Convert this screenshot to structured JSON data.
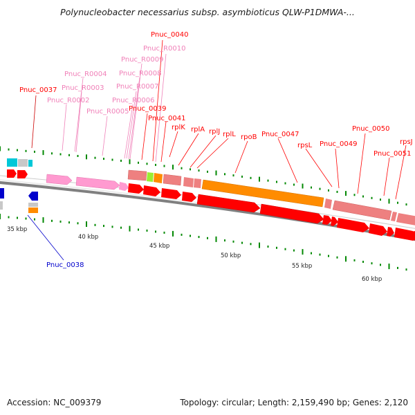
{
  "title": "Polynucleobacter necessarius subsp. asymbioticus QLW-P1DMWA-...",
  "footer": {
    "accession": "Accession: NC_009379",
    "summary": "Topology: circular; Length: 2,159,490 bp; Genes: 2,120"
  },
  "colors": {
    "cds": "#ff0000",
    "rrna": "#ee8080",
    "trna_label": "#f080b8",
    "ncrna": "#ff9ad0",
    "long_gene": "#ff8c00",
    "other_strand": "#0000cc",
    "cyan_gene": "#00c8d8",
    "green_gene": "#99ee33",
    "backbone": "#808080",
    "tick": "#008800"
  },
  "scale_labels": [
    "35 kbp",
    "40 kbp",
    "45 kbp",
    "50 kbp",
    "55 kbp",
    "60 kbp"
  ],
  "gene_labels": [
    {
      "text": "Pnuc_0040",
      "kind": "cds"
    },
    {
      "text": "Pnuc_R0010",
      "kind": "rna"
    },
    {
      "text": "Pnuc_R0009",
      "kind": "rna"
    },
    {
      "text": "Pnuc_R0004",
      "kind": "rna"
    },
    {
      "text": "Pnuc_R0008",
      "kind": "rna"
    },
    {
      "text": "Pnuc_0037",
      "kind": "cds"
    },
    {
      "text": "Pnuc_R0003",
      "kind": "rna"
    },
    {
      "text": "Pnuc_R0007",
      "kind": "rna"
    },
    {
      "text": "Pnuc_R0002",
      "kind": "rna"
    },
    {
      "text": "Pnuc_R0006",
      "kind": "rna"
    },
    {
      "text": "Pnuc_R0005",
      "kind": "rna"
    },
    {
      "text": "Pnuc_0039",
      "kind": "cds"
    },
    {
      "text": "Pnuc_0041",
      "kind": "cds"
    },
    {
      "text": "rplK",
      "kind": "cds"
    },
    {
      "text": "rplA",
      "kind": "cds"
    },
    {
      "text": "rplJ",
      "kind": "cds"
    },
    {
      "text": "rplL",
      "kind": "cds"
    },
    {
      "text": "rpoB",
      "kind": "cds"
    },
    {
      "text": "Pnuc_0047",
      "kind": "cds"
    },
    {
      "text": "Pnuc_0050",
      "kind": "cds"
    },
    {
      "text": "rpsL",
      "kind": "cds"
    },
    {
      "text": "Pnuc_0049",
      "kind": "cds"
    },
    {
      "text": "Pnuc_0051",
      "kind": "cds"
    },
    {
      "text": "rpsJ",
      "kind": "cds"
    },
    {
      "text": "Pnuc_0038",
      "kind": "other"
    }
  ]
}
